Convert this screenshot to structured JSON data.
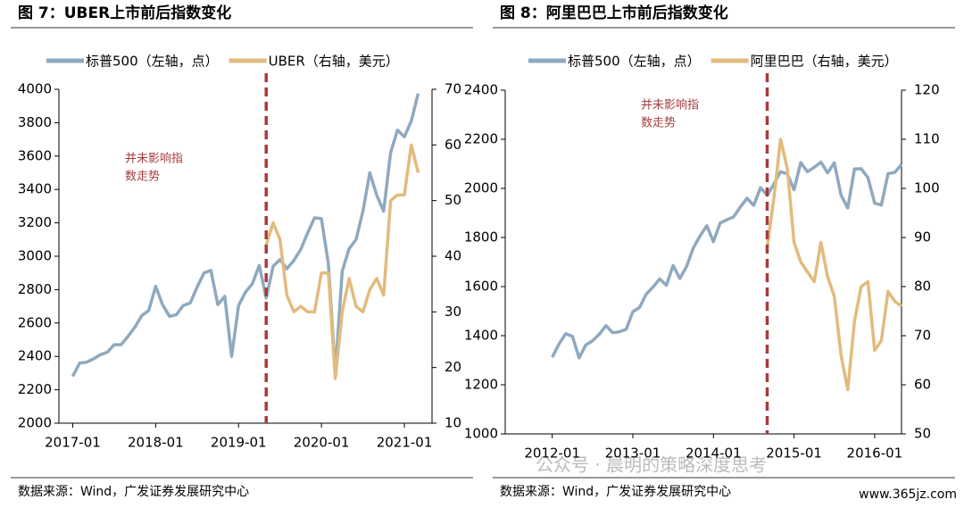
{
  "chart_data": [
    {
      "type": "line",
      "title": "图 7：UBER上市前后指数变化",
      "x": [
        "2017-01",
        "2017-02",
        "2017-03",
        "2017-04",
        "2017-05",
        "2017-06",
        "2017-07",
        "2017-08",
        "2017-09",
        "2017-10",
        "2017-11",
        "2017-12",
        "2018-01",
        "2018-02",
        "2018-03",
        "2018-04",
        "2018-05",
        "2018-06",
        "2018-07",
        "2018-08",
        "2018-09",
        "2018-10",
        "2018-11",
        "2018-12",
        "2019-01",
        "2019-02",
        "2019-03",
        "2019-04",
        "2019-05",
        "2019-06",
        "2019-07",
        "2019-08",
        "2019-09",
        "2019-10",
        "2019-11",
        "2019-12",
        "2020-01",
        "2020-02",
        "2020-03",
        "2020-04",
        "2020-05",
        "2020-06",
        "2020-07",
        "2020-08",
        "2020-09",
        "2020-10",
        "2020-11",
        "2020-12",
        "2021-01",
        "2021-02",
        "2021-03"
      ],
      "series": [
        {
          "name": "标普500（左轴，点）",
          "color": "#8fa9bf",
          "axis": "y",
          "values": [
            2280,
            2360,
            2365,
            2385,
            2410,
            2425,
            2470,
            2470,
            2520,
            2575,
            2645,
            2675,
            2820,
            2710,
            2640,
            2650,
            2705,
            2720,
            2815,
            2900,
            2915,
            2710,
            2760,
            2400,
            2705,
            2785,
            2835,
            2945,
            2750,
            2940,
            2980,
            2925,
            2975,
            3040,
            3140,
            3230,
            3225,
            2955,
            2300,
            2910,
            3045,
            3100,
            3270,
            3500,
            3365,
            3270,
            3620,
            3755,
            3715,
            3810,
            3975
          ]
        },
        {
          "name": "UBER（右轴，美元）",
          "color": "#e2bb7e",
          "axis": "y2",
          "values": [
            null,
            null,
            null,
            null,
            null,
            null,
            null,
            null,
            null,
            null,
            null,
            null,
            null,
            null,
            null,
            null,
            null,
            null,
            null,
            null,
            null,
            null,
            null,
            null,
            null,
            null,
            null,
            null,
            42,
            46,
            43,
            33,
            30,
            31,
            30,
            30,
            37,
            37,
            18,
            30,
            36,
            31,
            30,
            34,
            36,
            33,
            50,
            51,
            51,
            60,
            55
          ]
        }
      ],
      "xlim": [
        "2016-11",
        "2021-05"
      ],
      "xticks": [
        "2017-01",
        "2018-01",
        "2019-01",
        "2020-01",
        "2021-01"
      ],
      "ylim": [
        2000,
        4000
      ],
      "yticks": [
        2000,
        2200,
        2400,
        2600,
        2800,
        3000,
        3200,
        3400,
        3600,
        3800,
        4000
      ],
      "y2lim": [
        10,
        70
      ],
      "y2ticks": [
        10,
        20,
        30,
        40,
        50,
        60,
        70
      ],
      "event_x": "2019-05",
      "event_color": "#a83c3c",
      "annotation": [
        "并未影响指",
        "数走势"
      ],
      "source": "数据来源：Wind，广发证券发展研究中心"
    },
    {
      "type": "line",
      "title": "图 8：阿里巴巴上市前后指数变化",
      "x": [
        "2012-01",
        "2012-02",
        "2012-03",
        "2012-04",
        "2012-05",
        "2012-06",
        "2012-07",
        "2012-08",
        "2012-09",
        "2012-10",
        "2012-11",
        "2012-12",
        "2013-01",
        "2013-02",
        "2013-03",
        "2013-04",
        "2013-05",
        "2013-06",
        "2013-07",
        "2013-08",
        "2013-09",
        "2013-10",
        "2013-11",
        "2013-12",
        "2014-01",
        "2014-02",
        "2014-03",
        "2014-04",
        "2014-05",
        "2014-06",
        "2014-07",
        "2014-08",
        "2014-09",
        "2014-10",
        "2014-11",
        "2014-12",
        "2015-01",
        "2015-02",
        "2015-03",
        "2015-04",
        "2015-05",
        "2015-06",
        "2015-07",
        "2015-08",
        "2015-09",
        "2015-10",
        "2015-11",
        "2015-12",
        "2016-01",
        "2016-02",
        "2016-03",
        "2016-04",
        "2016-05"
      ],
      "series": [
        {
          "name": "标普500（左轴，点）",
          "color": "#8fa9bf",
          "axis": "y",
          "values": [
            1312,
            1366,
            1408,
            1398,
            1310,
            1362,
            1379,
            1406,
            1441,
            1412,
            1416,
            1426,
            1498,
            1515,
            1569,
            1598,
            1631,
            1606,
            1686,
            1633,
            1682,
            1757,
            1806,
            1848,
            1783,
            1859,
            1872,
            1884,
            1924,
            1960,
            1931,
            2003,
            1972,
            2018,
            2068,
            2059,
            1995,
            2105,
            2068,
            2086,
            2107,
            2063,
            2104,
            1972,
            1920,
            2079,
            2080,
            2044,
            1940,
            1932,
            2060,
            2065,
            2097
          ]
        },
        {
          "name": "阿里巴巴（右轴，美元）",
          "color": "#e2bb7e",
          "axis": "y2",
          "values": [
            null,
            null,
            null,
            null,
            null,
            null,
            null,
            null,
            null,
            null,
            null,
            null,
            null,
            null,
            null,
            null,
            null,
            null,
            null,
            null,
            null,
            null,
            null,
            null,
            null,
            null,
            null,
            null,
            null,
            null,
            null,
            null,
            88,
            98,
            110,
            104,
            89,
            85,
            83,
            81,
            89,
            82,
            78,
            66,
            59,
            73,
            80,
            81,
            67,
            69,
            79,
            77,
            76
          ]
        }
      ],
      "xlim": [
        "2011-06",
        "2016-05"
      ],
      "xticks": [
        "2012-01",
        "2013-01",
        "2014-01",
        "2015-01",
        "2016-01"
      ],
      "ylim": [
        1000,
        2400
      ],
      "yticks": [
        1000,
        1200,
        1400,
        1600,
        1800,
        2000,
        2200,
        2400
      ],
      "y2lim": [
        50,
        120
      ],
      "y2ticks": [
        50,
        60,
        70,
        80,
        90,
        100,
        110,
        120
      ],
      "event_x": "2014-09",
      "event_color": "#a83c3c",
      "annotation": [
        "并未影响指",
        "数走势"
      ],
      "source": "数据来源：Wind，广发证券发展研究中心"
    }
  ],
  "watermark": "公众号 · 晨明的策略深度思考",
  "site": "www.365jz.com"
}
